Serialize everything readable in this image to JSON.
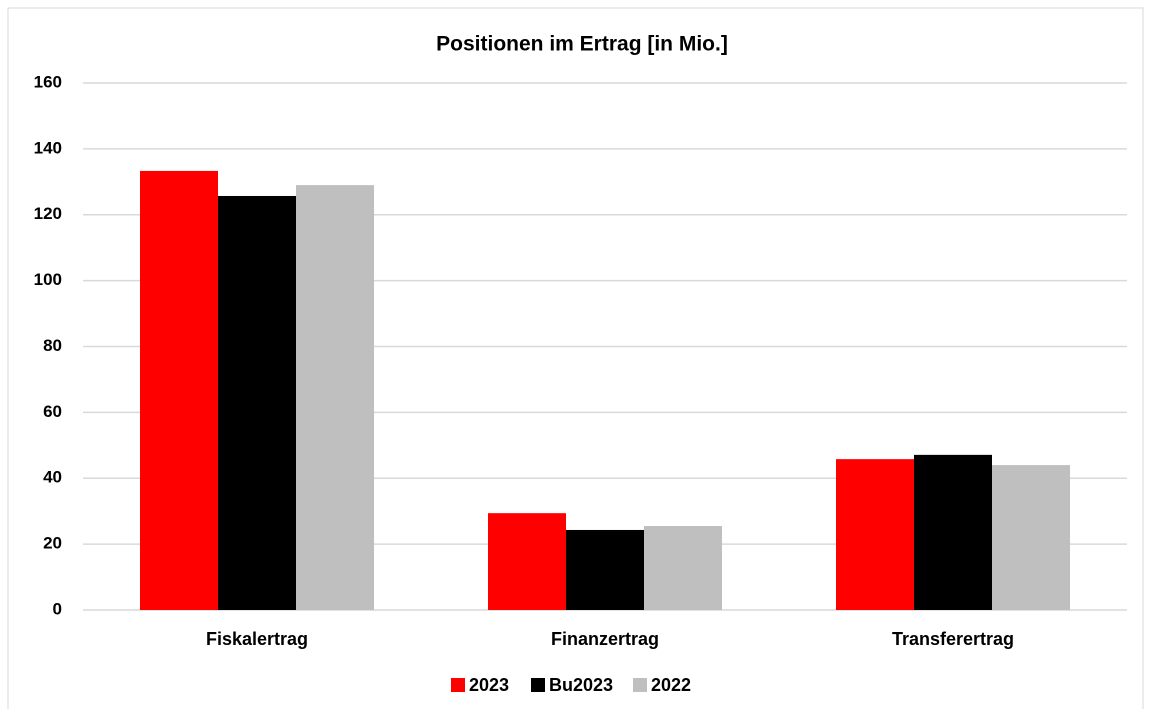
{
  "chart_data": {
    "type": "bar",
    "title": "Positionen im Ertrag [in Mio.]",
    "categories": [
      "Fiskalertrag",
      "Finanzertrag",
      "Transferertrag"
    ],
    "series": [
      {
        "name": "2023",
        "color": "#ff0000",
        "values": [
          133.3,
          29.4,
          45.8
        ]
      },
      {
        "name": "Bu2023",
        "color": "#000000",
        "values": [
          125.7,
          24.3,
          47.1
        ]
      },
      {
        "name": "2022",
        "color": "#bfbfbf",
        "values": [
          129.0,
          25.5,
          44.0
        ]
      }
    ],
    "ylim": [
      0,
      160
    ],
    "yticks": [
      0,
      20,
      40,
      60,
      80,
      100,
      120,
      140,
      160
    ],
    "grid": true,
    "legend": "bottom"
  }
}
